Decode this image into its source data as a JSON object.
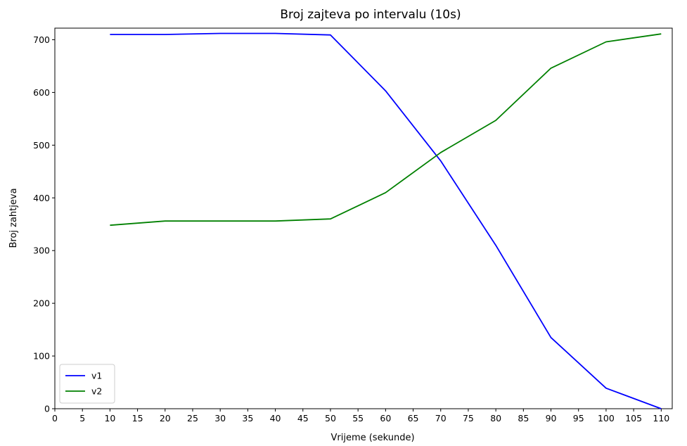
{
  "chart_data": {
    "type": "line",
    "title": "Broj zajteva po intervalu (10s)",
    "xlabel": "Vrijeme (sekunde)",
    "ylabel": "Broj zahtjeva",
    "xlim": [
      0,
      112
    ],
    "ylim": [
      0,
      722
    ],
    "xticks": [
      0,
      5,
      10,
      15,
      20,
      25,
      30,
      35,
      40,
      45,
      50,
      55,
      60,
      65,
      70,
      75,
      80,
      85,
      90,
      95,
      100,
      105,
      110
    ],
    "yticks": [
      0,
      100,
      200,
      300,
      400,
      500,
      600,
      700
    ],
    "grid": false,
    "legend": "lower-left",
    "x": [
      10,
      20,
      30,
      40,
      50,
      60,
      70,
      80,
      90,
      100,
      110
    ],
    "series": [
      {
        "name": "v1",
        "color": "#0000ff",
        "values": [
          710,
          710,
          712,
          712,
          709,
          603,
          470,
          310,
          135,
          39,
          0
        ]
      },
      {
        "name": "v2",
        "color": "#008000",
        "values": [
          348,
          356,
          356,
          356,
          360,
          410,
          486,
          547,
          646,
          696,
          711
        ]
      }
    ]
  }
}
